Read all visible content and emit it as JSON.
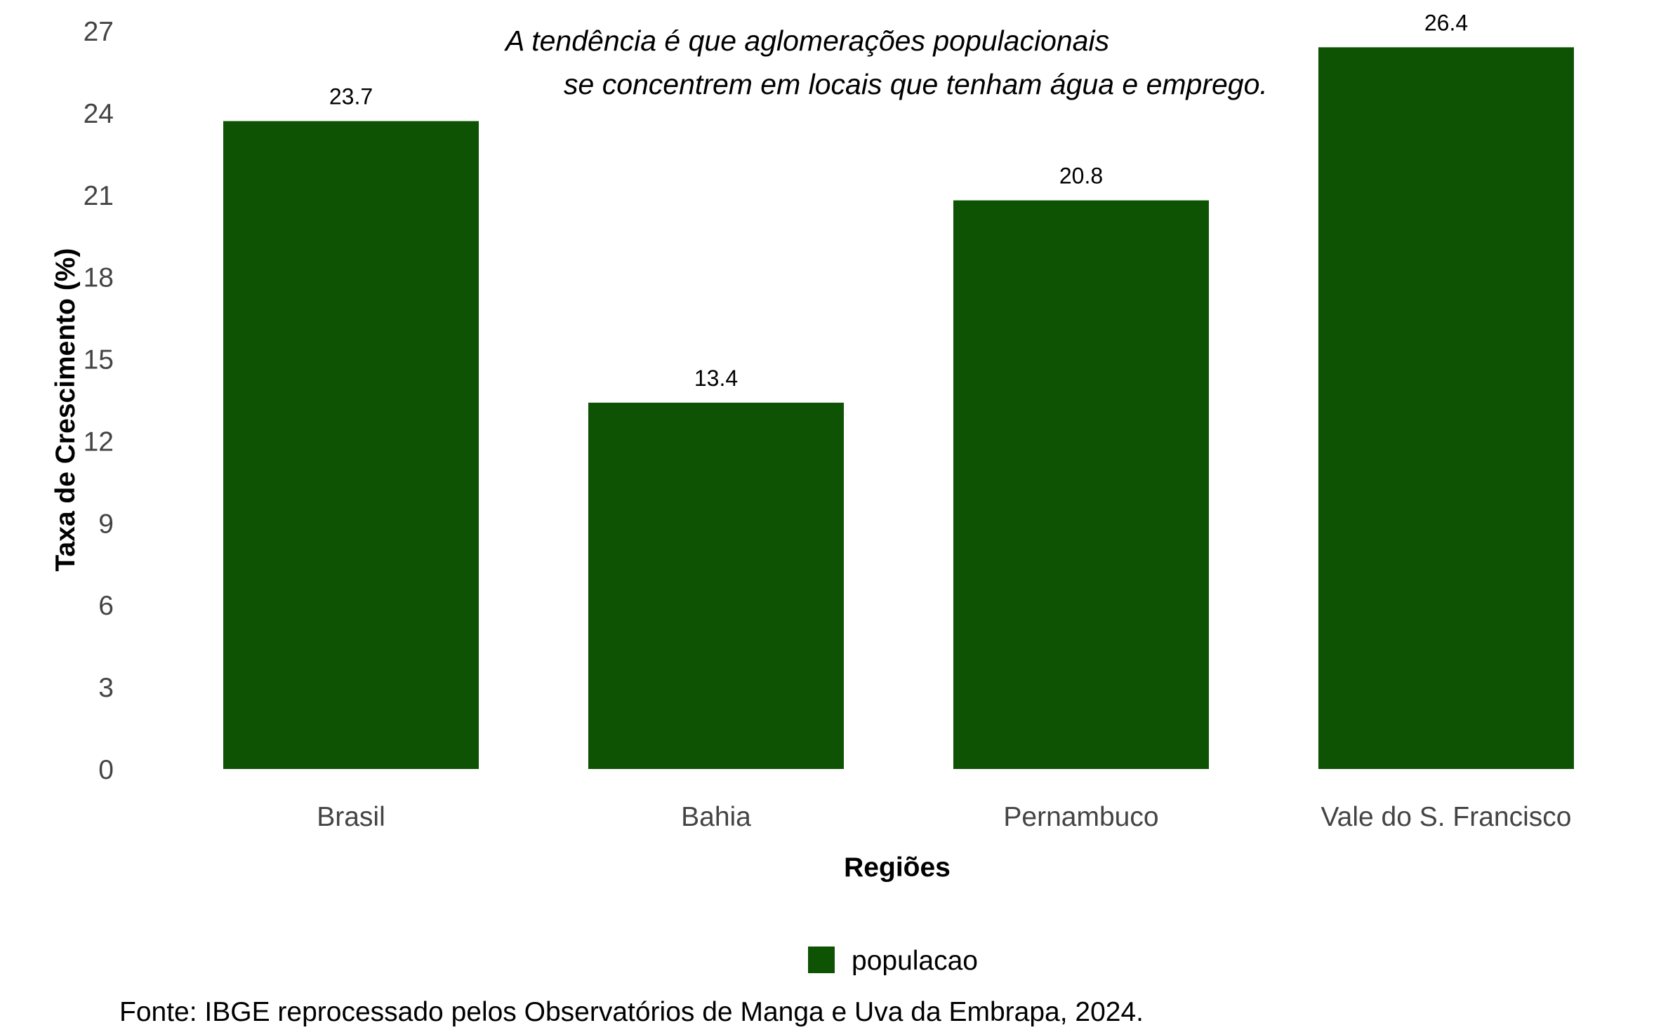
{
  "chart_data": {
    "type": "bar",
    "categories": [
      "Brasil",
      "Bahia",
      "Pernambuco",
      "Vale do S. Francisco"
    ],
    "series": [
      {
        "name": "populacao",
        "values": [
          23.7,
          13.4,
          20.8,
          26.4
        ]
      }
    ],
    "data_labels": [
      "23.7",
      "13.4",
      "20.8",
      "26.4"
    ],
    "xlabel": "Regiões",
    "ylabel": "Taxa de Crescimento (%)",
    "ylim": [
      0,
      27
    ],
    "yticks": [
      0,
      3,
      6,
      9,
      12,
      15,
      18,
      21,
      24,
      27
    ],
    "grid": false,
    "legend": {
      "position": "bottom",
      "entries": [
        "populacao"
      ]
    },
    "annotation": {
      "line1": "A tendência é que aglomerações populacionais",
      "line2": "se concentrem em locais que tenham água e emprego."
    },
    "caption": "Fonte: IBGE reprocessado pelos Observatórios de Manga e Uva da Embrapa, 2024.",
    "colors": {
      "bar": "#0d5303"
    }
  }
}
